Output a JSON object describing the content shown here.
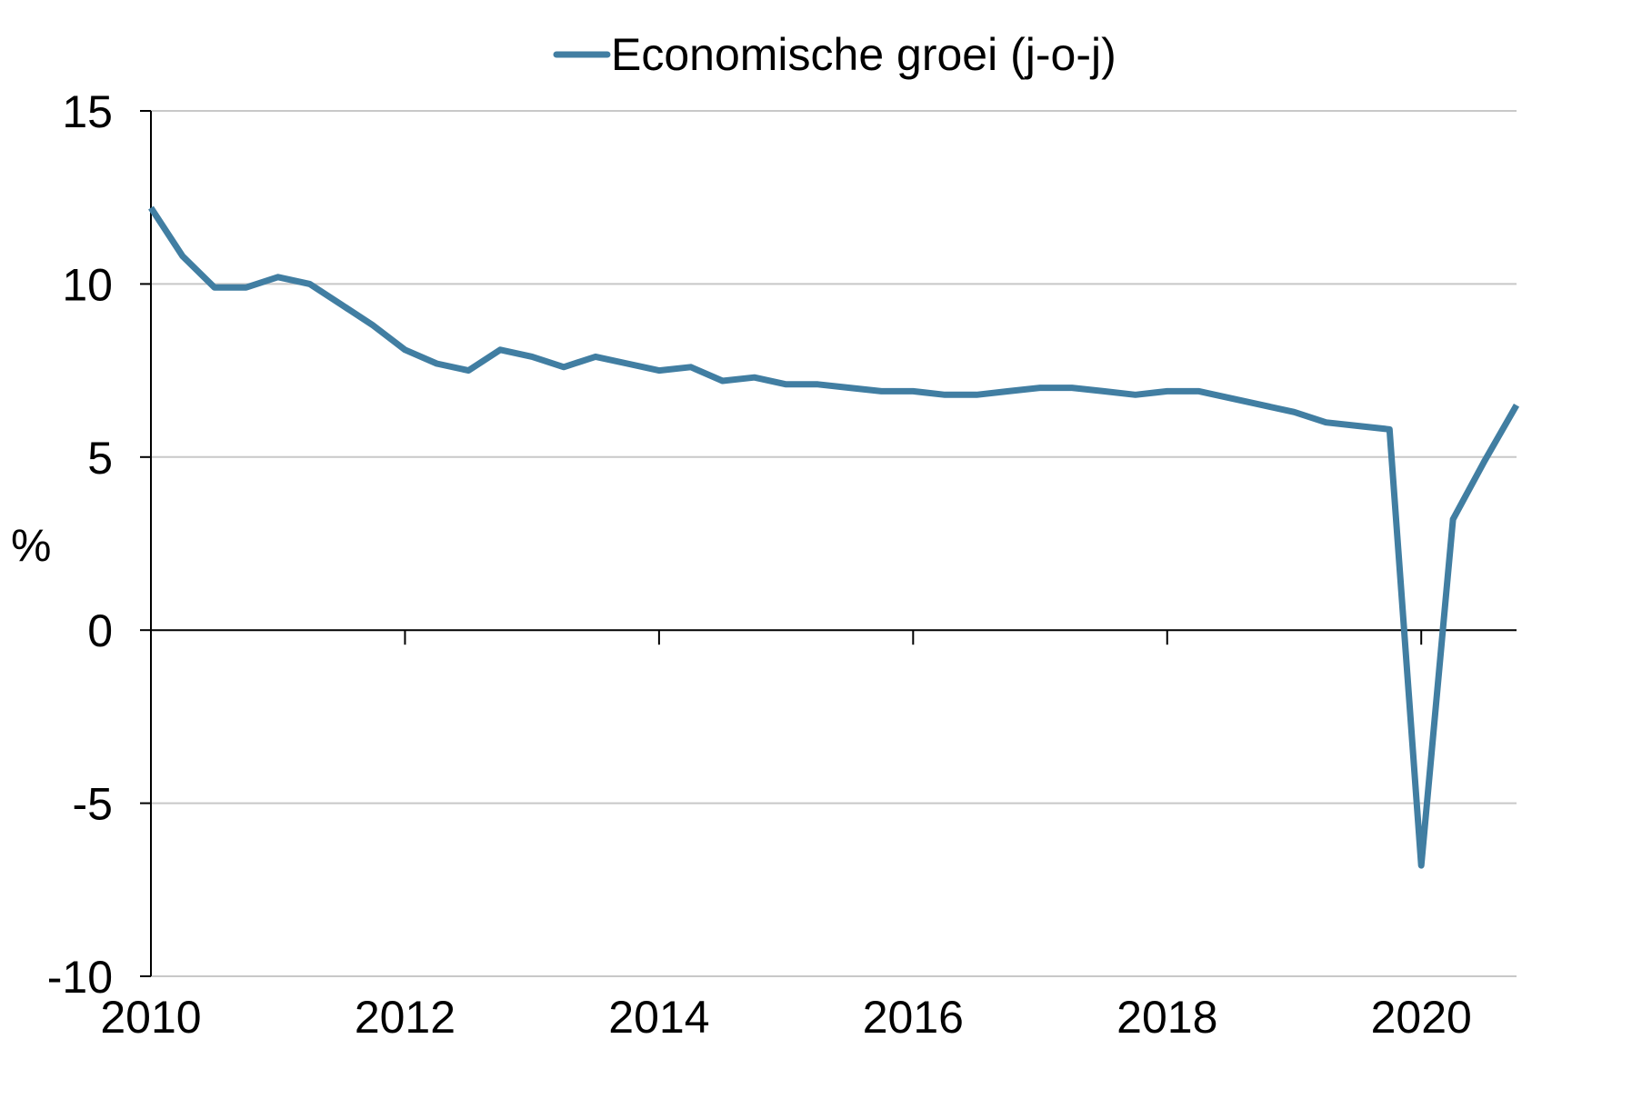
{
  "chart_data": {
    "type": "line",
    "title": "",
    "xlabel": "",
    "ylabel": "%",
    "ylim": [
      -10,
      15
    ],
    "xlim": [
      2010,
      2020.75
    ],
    "yticks": [
      "15",
      "10",
      "5",
      "0",
      "-5",
      "-10"
    ],
    "xticks": [
      "2010",
      "2012",
      "2014",
      "2016",
      "2018",
      "2020"
    ],
    "grid": "horizontal",
    "legend_position": "top-center",
    "series": [
      {
        "name": "Economische groei (j-o-j)",
        "color": "#417ea2",
        "x": [
          2010.0,
          2010.25,
          2010.5,
          2010.75,
          2011.0,
          2011.25,
          2011.5,
          2011.75,
          2012.0,
          2012.25,
          2012.5,
          2012.75,
          2013.0,
          2013.25,
          2013.5,
          2013.75,
          2014.0,
          2014.25,
          2014.5,
          2014.75,
          2015.0,
          2015.25,
          2015.5,
          2015.75,
          2016.0,
          2016.25,
          2016.5,
          2016.75,
          2017.0,
          2017.25,
          2017.5,
          2017.75,
          2018.0,
          2018.25,
          2018.5,
          2018.75,
          2019.0,
          2019.25,
          2019.5,
          2019.75,
          2020.0,
          2020.25,
          2020.5,
          2020.75
        ],
        "values": [
          12.2,
          10.8,
          9.9,
          9.9,
          10.2,
          10.0,
          9.4,
          8.8,
          8.1,
          7.7,
          7.5,
          8.1,
          7.9,
          7.6,
          7.9,
          7.7,
          7.5,
          7.6,
          7.2,
          7.3,
          7.1,
          7.1,
          7.0,
          6.9,
          6.9,
          6.8,
          6.8,
          6.9,
          7.0,
          7.0,
          6.9,
          6.8,
          6.9,
          6.9,
          6.7,
          6.5,
          6.3,
          6.0,
          5.9,
          5.8,
          -6.8,
          3.2,
          4.9,
          6.5
        ]
      }
    ]
  }
}
